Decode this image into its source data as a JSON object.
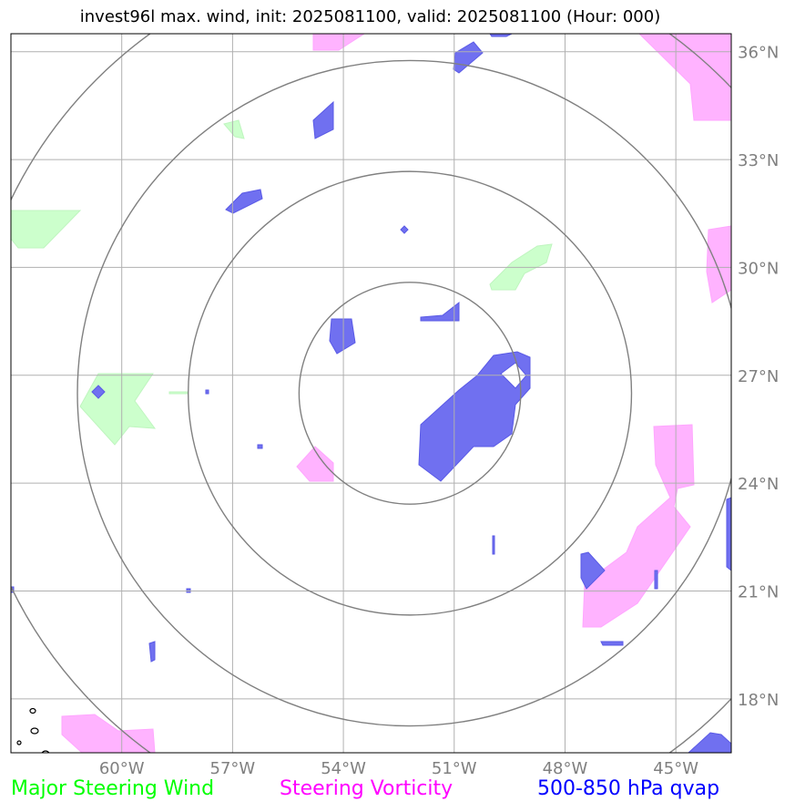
{
  "title": "invest96l max. wind, init: 2025081100, valid: 2025081100 (Hour: 000)",
  "map": {
    "lon_range": [
      -63,
      -43.5
    ],
    "lat_range": [
      16.5,
      36.5
    ],
    "center": {
      "lon": -52.2,
      "lat": 26.5
    },
    "range_rings_deg": [
      3,
      6,
      9,
      12
    ],
    "meridians": [
      -60,
      -57,
      -54,
      -51,
      -48,
      -45
    ],
    "parallels": [
      18,
      21,
      24,
      27,
      30,
      33,
      36
    ],
    "lon_tick_labels": [
      "60°W",
      "57°W",
      "54°W",
      "51°W",
      "48°W",
      "45°W"
    ],
    "lat_tick_labels": [
      "18°N",
      "21°N",
      "24°N",
      "27°N",
      "30°N",
      "33°N",
      "36°N"
    ],
    "colors": {
      "grid": "#b0b0b0",
      "rings": "#808080",
      "steering_wind": "#ccffcc",
      "steering_vorticity": "#ffb3ff",
      "qvap": "#7070f0"
    }
  },
  "legend": {
    "wind": "Major Steering Wind",
    "vorticity": "Steering Vorticity",
    "qvap": "500-850 hPa qvap"
  }
}
